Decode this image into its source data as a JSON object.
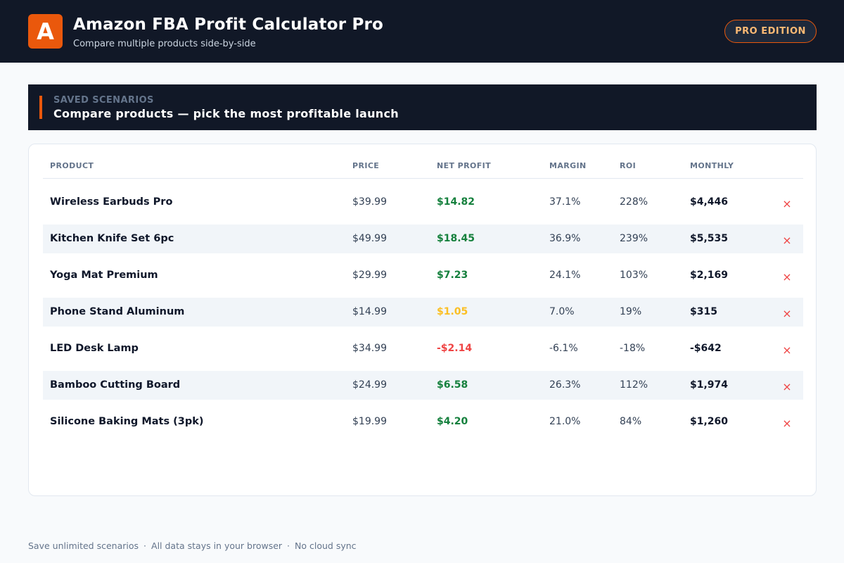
{
  "header": {
    "logo_letter": "A",
    "title": "Amazon FBA Profit Calculator Pro",
    "subtitle": "Compare multiple products side-by-side",
    "badge": "PRO EDITION"
  },
  "banner": {
    "kicker": "SAVED SCENARIOS",
    "title": "Compare products — pick the most profitable launch"
  },
  "table": {
    "columns": [
      "PRODUCT",
      "PRICE",
      "NET PROFIT",
      "MARGIN",
      "ROI",
      "MONTHLY"
    ],
    "remove_icon": "×",
    "rows": [
      {
        "product": "Wireless Earbuds Pro",
        "price": "$39.99",
        "net_profit": "$14.82",
        "profit_color": "#15803d",
        "margin": "37.1%",
        "roi": "228%",
        "monthly": "$4,446"
      },
      {
        "product": "Kitchen Knife Set 6pc",
        "price": "$49.99",
        "net_profit": "$18.45",
        "profit_color": "#15803d",
        "margin": "36.9%",
        "roi": "239%",
        "monthly": "$5,535"
      },
      {
        "product": "Yoga Mat Premium",
        "price": "$29.99",
        "net_profit": "$7.23",
        "profit_color": "#15803d",
        "margin": "24.1%",
        "roi": "103%",
        "monthly": "$2,169"
      },
      {
        "product": "Phone Stand Aluminum",
        "price": "$14.99",
        "net_profit": "$1.05",
        "profit_color": "#fbbf24",
        "margin": "7.0%",
        "roi": "19%",
        "monthly": "$315"
      },
      {
        "product": "LED Desk Lamp",
        "price": "$34.99",
        "net_profit": "-$2.14",
        "profit_color": "#ef4444",
        "margin": "-6.1%",
        "roi": "-18%",
        "monthly": "-$642"
      },
      {
        "product": "Bamboo Cutting Board",
        "price": "$24.99",
        "net_profit": "$6.58",
        "profit_color": "#15803d",
        "margin": "26.3%",
        "roi": "112%",
        "monthly": "$1,974"
      },
      {
        "product": "Silicone Baking Mats (3pk)",
        "price": "$19.99",
        "net_profit": "$4.20",
        "profit_color": "#15803d",
        "margin": "21.0%",
        "roi": "84%",
        "monthly": "$1,260"
      }
    ]
  },
  "footer": {
    "items": [
      "Save unlimited scenarios",
      "All data stays in your browser",
      "No cloud sync"
    ],
    "separator": "·"
  }
}
